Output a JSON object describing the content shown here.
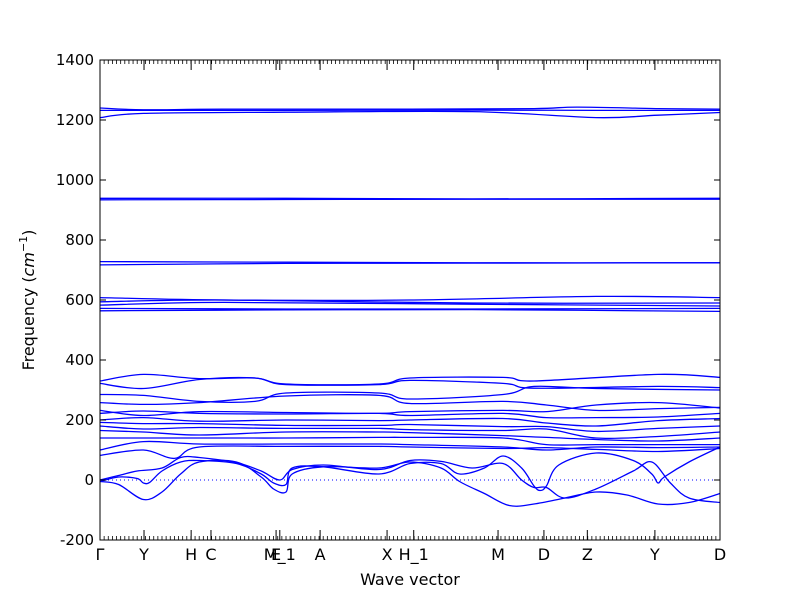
{
  "chart_data": {
    "type": "line",
    "title": "",
    "xlabel": "Wave vector",
    "ylabel": "Frequency ($cm^{-1}$)",
    "ylabel_text": "Frequency (",
    "ylabel_math": "cm",
    "ylabel_sup": "−1",
    "ylabel_close": ")",
    "ylim": [
      -200,
      1400
    ],
    "xlim": [
      0,
      1
    ],
    "yticks": [
      -200,
      0,
      200,
      400,
      600,
      800,
      1000,
      1200,
      1400
    ],
    "grid": false,
    "zero_line": {
      "y": 0,
      "style": "dotted"
    },
    "series_color": "#0000ff",
    "high_symmetry_points": [
      {
        "label": "Γ",
        "x": 0.0
      },
      {
        "label": "Y",
        "x": 0.071
      },
      {
        "label": "H",
        "x": 0.147
      },
      {
        "label": "C",
        "x": 0.179
      },
      {
        "label": "E",
        "x": 0.284
      },
      {
        "label": "M_1",
        "x": 0.29
      },
      {
        "label": "A",
        "x": 0.355
      },
      {
        "label": "X",
        "x": 0.463
      },
      {
        "label": "H_1",
        "x": 0.506
      },
      {
        "label": "M",
        "x": 0.642
      },
      {
        "label": "D",
        "x": 0.716
      },
      {
        "label": "Z",
        "x": 0.786
      },
      {
        "label": "Y",
        "x": 0.895
      },
      {
        "label": "D",
        "x": 1.0
      }
    ],
    "series": [
      {
        "values": [
          [
            0,
            1240
          ],
          [
            0.07,
            1234
          ],
          [
            0.2,
            1236
          ],
          [
            0.5,
            1236
          ],
          [
            0.7,
            1238
          ],
          [
            0.77,
            1243
          ],
          [
            0.9,
            1238
          ],
          [
            1,
            1236
          ]
        ]
      },
      {
        "values": [
          [
            0,
            1232
          ],
          [
            0.3,
            1232
          ],
          [
            0.6,
            1233
          ],
          [
            0.8,
            1232
          ],
          [
            1,
            1232
          ]
        ]
      },
      {
        "values": [
          [
            0,
            1208
          ],
          [
            0.07,
            1222
          ],
          [
            0.3,
            1226
          ],
          [
            0.6,
            1228
          ],
          [
            0.8,
            1208
          ],
          [
            0.9,
            1216
          ],
          [
            1,
            1225
          ]
        ]
      },
      {
        "values": [
          [
            0,
            939
          ],
          [
            0.3,
            939
          ],
          [
            0.6,
            937
          ],
          [
            1,
            939
          ]
        ]
      },
      {
        "values": [
          [
            0,
            934
          ],
          [
            0.3,
            935
          ],
          [
            0.6,
            936
          ],
          [
            1,
            936
          ]
        ]
      },
      {
        "values": [
          [
            0,
            728
          ],
          [
            0.3,
            726
          ],
          [
            0.6,
            724
          ],
          [
            1,
            724
          ]
        ]
      },
      {
        "values": [
          [
            0,
            717
          ],
          [
            0.3,
            722
          ],
          [
            0.6,
            723
          ],
          [
            1,
            724
          ]
        ]
      },
      {
        "values": [
          [
            0,
            608
          ],
          [
            0.2,
            600
          ],
          [
            0.5,
            600
          ],
          [
            0.8,
            612
          ],
          [
            1,
            608
          ]
        ]
      },
      {
        "values": [
          [
            0,
            594
          ],
          [
            0.2,
            600
          ],
          [
            0.6,
            590
          ],
          [
            1,
            590
          ]
        ]
      },
      {
        "values": [
          [
            0,
            583
          ],
          [
            0.2,
            592
          ],
          [
            0.6,
            586
          ],
          [
            1,
            580
          ]
        ]
      },
      {
        "values": [
          [
            0,
            572
          ],
          [
            0.3,
            570
          ],
          [
            0.6,
            570
          ],
          [
            1,
            572
          ]
        ]
      },
      {
        "values": [
          [
            0,
            564
          ],
          [
            0.3,
            567
          ],
          [
            0.6,
            568
          ],
          [
            1,
            562
          ]
        ]
      },
      {
        "values": [
          [
            0,
            330
          ],
          [
            0.07,
            352
          ],
          [
            0.16,
            338
          ],
          [
            0.25,
            340
          ],
          [
            0.3,
            320
          ],
          [
            0.45,
            320
          ],
          [
            0.5,
            340
          ],
          [
            0.65,
            342
          ],
          [
            0.7,
            330
          ],
          [
            0.9,
            352
          ],
          [
            1,
            342
          ]
        ]
      },
      {
        "values": [
          [
            0,
            322
          ],
          [
            0.07,
            305
          ],
          [
            0.16,
            335
          ],
          [
            0.25,
            340
          ],
          [
            0.3,
            318
          ],
          [
            0.45,
            318
          ],
          [
            0.5,
            332
          ],
          [
            0.65,
            322
          ],
          [
            0.7,
            306
          ],
          [
            0.9,
            312
          ],
          [
            1,
            308
          ]
        ]
      },
      {
        "values": [
          [
            0,
            285
          ],
          [
            0.07,
            282
          ],
          [
            0.16,
            262
          ],
          [
            0.25,
            262
          ],
          [
            0.3,
            290
          ],
          [
            0.45,
            290
          ],
          [
            0.5,
            270
          ],
          [
            0.65,
            285
          ],
          [
            0.7,
            312
          ],
          [
            0.8,
            305
          ],
          [
            1,
            300
          ]
        ]
      },
      {
        "values": [
          [
            0,
            258
          ],
          [
            0.07,
            252
          ],
          [
            0.16,
            258
          ],
          [
            0.3,
            280
          ],
          [
            0.45,
            282
          ],
          [
            0.5,
            255
          ],
          [
            0.65,
            262
          ],
          [
            0.72,
            250
          ],
          [
            0.8,
            232
          ],
          [
            0.9,
            238
          ],
          [
            1,
            242
          ]
        ]
      },
      {
        "values": [
          [
            0,
            232
          ],
          [
            0.07,
            215
          ],
          [
            0.16,
            228
          ],
          [
            0.3,
            225
          ],
          [
            0.45,
            222
          ],
          [
            0.5,
            228
          ],
          [
            0.65,
            232
          ],
          [
            0.72,
            228
          ],
          [
            0.8,
            250
          ],
          [
            0.9,
            258
          ],
          [
            1,
            240
          ]
        ]
      },
      {
        "values": [
          [
            0,
            222
          ],
          [
            0.07,
            230
          ],
          [
            0.16,
            222
          ],
          [
            0.3,
            220
          ],
          [
            0.45,
            222
          ],
          [
            0.5,
            215
          ],
          [
            0.65,
            222
          ],
          [
            0.72,
            208
          ],
          [
            0.8,
            208
          ],
          [
            0.9,
            210
          ],
          [
            1,
            222
          ]
        ]
      },
      {
        "values": [
          [
            0,
            200
          ],
          [
            0.07,
            208
          ],
          [
            0.16,
            196
          ],
          [
            0.3,
            200
          ],
          [
            0.45,
            198
          ],
          [
            0.5,
            200
          ],
          [
            0.65,
            205
          ],
          [
            0.72,
            190
          ],
          [
            0.8,
            180
          ],
          [
            0.9,
            198
          ],
          [
            1,
            205
          ]
        ]
      },
      {
        "values": [
          [
            0,
            192
          ],
          [
            0.07,
            188
          ],
          [
            0.16,
            188
          ],
          [
            0.3,
            182
          ],
          [
            0.45,
            182
          ],
          [
            0.5,
            185
          ],
          [
            0.65,
            178
          ],
          [
            0.72,
            178
          ],
          [
            0.8,
            162
          ],
          [
            0.9,
            172
          ],
          [
            1,
            180
          ]
        ]
      },
      {
        "values": [
          [
            0,
            180
          ],
          [
            0.07,
            170
          ],
          [
            0.16,
            175
          ],
          [
            0.3,
            172
          ],
          [
            0.45,
            172
          ],
          [
            0.5,
            168
          ],
          [
            0.65,
            165
          ],
          [
            0.72,
            170
          ],
          [
            0.8,
            140
          ],
          [
            0.9,
            145
          ],
          [
            1,
            160
          ]
        ]
      },
      {
        "values": [
          [
            0,
            165
          ],
          [
            0.07,
            160
          ],
          [
            0.16,
            150
          ],
          [
            0.3,
            160
          ],
          [
            0.45,
            160
          ],
          [
            0.5,
            158
          ],
          [
            0.65,
            148
          ],
          [
            0.72,
            142
          ],
          [
            0.8,
            135
          ],
          [
            0.9,
            130
          ],
          [
            1,
            140
          ]
        ]
      },
      {
        "values": [
          [
            0,
            140
          ],
          [
            0.07,
            140
          ],
          [
            0.16,
            140
          ],
          [
            0.3,
            140
          ],
          [
            0.45,
            142
          ],
          [
            0.5,
            142
          ],
          [
            0.65,
            140
          ],
          [
            0.72,
            118
          ],
          [
            0.8,
            118
          ],
          [
            0.9,
            118
          ],
          [
            1,
            118
          ]
        ]
      },
      {
        "values": [
          [
            0,
            100
          ],
          [
            0.07,
            128
          ],
          [
            0.16,
            120
          ],
          [
            0.3,
            120
          ],
          [
            0.45,
            120
          ],
          [
            0.5,
            118
          ],
          [
            0.65,
            110
          ],
          [
            0.72,
            100
          ],
          [
            0.8,
            110
          ],
          [
            0.9,
            108
          ],
          [
            1,
            110
          ]
        ]
      },
      {
        "values": [
          [
            0,
            82
          ],
          [
            0.07,
            100
          ],
          [
            0.12,
            72
          ],
          [
            0.16,
            110
          ],
          [
            0.3,
            112
          ],
          [
            0.45,
            112
          ],
          [
            0.5,
            110
          ],
          [
            0.65,
            105
          ],
          [
            0.72,
            108
          ],
          [
            0.8,
            102
          ],
          [
            0.9,
            95
          ],
          [
            1,
            105
          ]
        ]
      },
      {
        "values": [
          [
            0,
            -5
          ],
          [
            0.03,
            -15
          ],
          [
            0.07,
            -65
          ],
          [
            0.1,
            -40
          ],
          [
            0.13,
            20
          ],
          [
            0.16,
            60
          ],
          [
            0.22,
            60
          ],
          [
            0.26,
            10
          ],
          [
            0.28,
            -30
          ],
          [
            0.3,
            -40
          ],
          [
            0.31,
            20
          ],
          [
            0.36,
            44
          ],
          [
            0.45,
            40
          ],
          [
            0.5,
            60
          ],
          [
            0.55,
            40
          ],
          [
            0.58,
            -5
          ],
          [
            0.62,
            -45
          ],
          [
            0.66,
            -85
          ],
          [
            0.7,
            -80
          ],
          [
            0.75,
            -60
          ],
          [
            0.8,
            -40
          ],
          [
            0.85,
            -50
          ],
          [
            0.9,
            -80
          ],
          [
            0.95,
            -75
          ],
          [
            1,
            -45
          ]
        ]
      },
      {
        "values": [
          [
            0,
            -5
          ],
          [
            0.03,
            10
          ],
          [
            0.06,
            5
          ],
          [
            0.07,
            -10
          ],
          [
            0.08,
            -8
          ],
          [
            0.1,
            30
          ],
          [
            0.13,
            60
          ],
          [
            0.16,
            65
          ],
          [
            0.22,
            55
          ],
          [
            0.26,
            20
          ],
          [
            0.28,
            -10
          ],
          [
            0.3,
            -15
          ],
          [
            0.31,
            40
          ],
          [
            0.36,
            44
          ],
          [
            0.45,
            20
          ],
          [
            0.5,
            55
          ],
          [
            0.55,
            55
          ],
          [
            0.58,
            20
          ],
          [
            0.62,
            40
          ],
          [
            0.65,
            80
          ],
          [
            0.68,
            40
          ],
          [
            0.7,
            -20
          ],
          [
            0.71,
            -35
          ],
          [
            0.72,
            -20
          ],
          [
            0.74,
            50
          ],
          [
            0.8,
            90
          ],
          [
            0.86,
            65
          ],
          [
            0.89,
            20
          ],
          [
            0.9,
            -10
          ],
          [
            0.91,
            10
          ],
          [
            0.95,
            60
          ],
          [
            1,
            110
          ]
        ]
      },
      {
        "values": [
          [
            0,
            0
          ],
          [
            0.03,
            15
          ],
          [
            0.06,
            30
          ],
          [
            0.1,
            40
          ],
          [
            0.13,
            75
          ],
          [
            0.16,
            75
          ],
          [
            0.22,
            58
          ],
          [
            0.26,
            30
          ],
          [
            0.29,
            0
          ],
          [
            0.31,
            35
          ],
          [
            0.36,
            50
          ],
          [
            0.45,
            35
          ],
          [
            0.5,
            65
          ],
          [
            0.55,
            62
          ],
          [
            0.6,
            40
          ],
          [
            0.65,
            55
          ],
          [
            0.68,
            0
          ],
          [
            0.7,
            -25
          ],
          [
            0.72,
            -25
          ],
          [
            0.75,
            -60
          ],
          [
            0.8,
            -30
          ],
          [
            0.86,
            30
          ],
          [
            0.89,
            60
          ],
          [
            0.92,
            -10
          ],
          [
            0.95,
            -60
          ],
          [
            1,
            -75
          ]
        ]
      }
    ]
  }
}
